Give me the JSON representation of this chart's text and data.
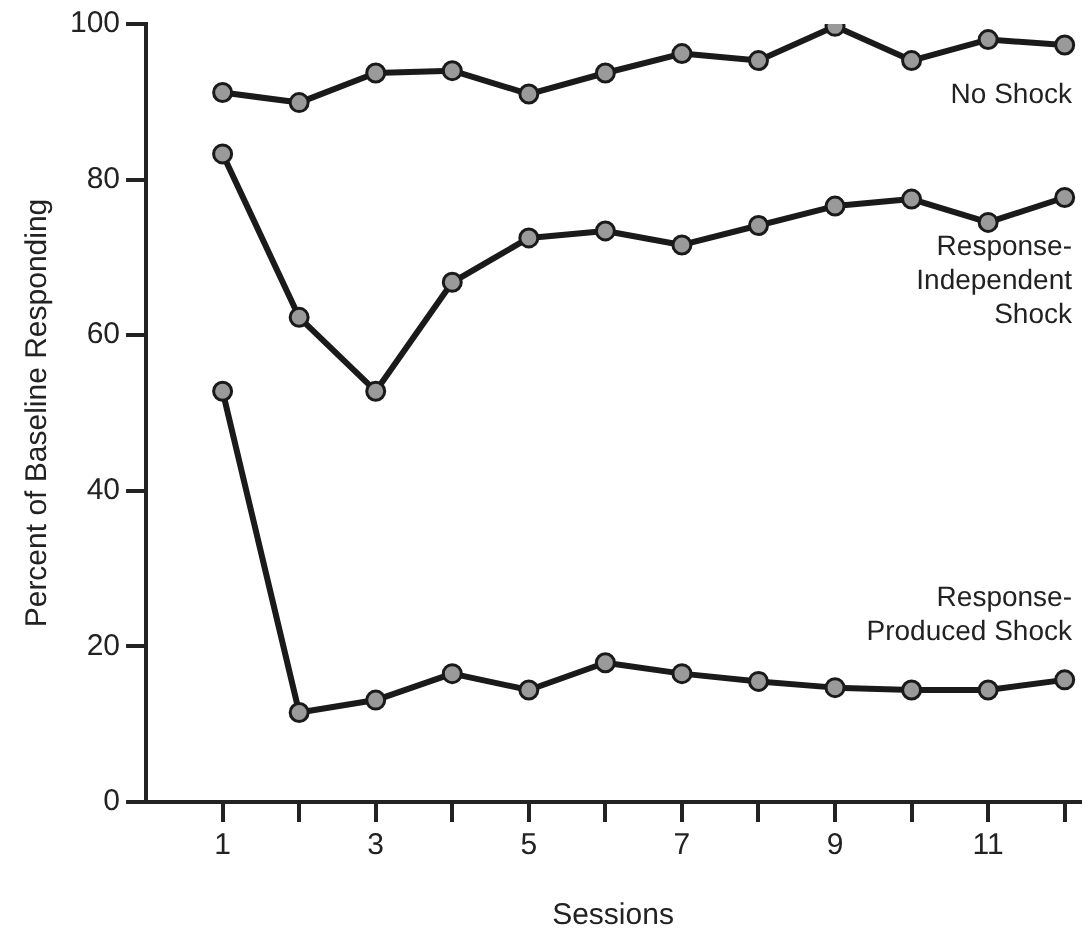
{
  "chart_data": {
    "type": "line",
    "xlabel": "Sessions",
    "ylabel": "Percent of Baseline Responding",
    "x": [
      1,
      2,
      3,
      4,
      5,
      6,
      7,
      8,
      9,
      10,
      11,
      12
    ],
    "series": [
      {
        "name": "No Shock",
        "color": "#1a1a1a",
        "values": [
          91.2,
          89.9,
          93.7,
          94,
          91,
          93.7,
          96.2,
          95.3,
          99.7,
          95.3,
          98,
          97.3
        ]
      },
      {
        "name": "Response-Independent Shock",
        "color": "#1a1a1a",
        "values": [
          83.3,
          62.3,
          52.8,
          66.8,
          72.5,
          73.4,
          71.6,
          74.1,
          76.6,
          77.5,
          74.5,
          77.7
        ]
      },
      {
        "name": "Response-Produced Shock",
        "color": "#1a1a1a",
        "values": [
          52.8,
          11.5,
          13.1,
          16.5,
          14.4,
          17.9,
          16.5,
          15.5,
          14.7,
          14.4,
          14.4,
          15.7
        ]
      }
    ],
    "xlim": [
      0,
      12.2
    ],
    "xticks": [
      1,
      {
        "value": 2,
        "label": null
      },
      3,
      {
        "value": 4,
        "label": null
      },
      5,
      {
        "value": 6,
        "label": null
      },
      7,
      {
        "value": 8,
        "label": null
      },
      9,
      {
        "value": 10,
        "label": null
      },
      11,
      {
        "value": 12,
        "label": null
      }
    ],
    "ylim": [
      0,
      100
    ],
    "yticks": [
      0,
      20,
      40,
      60,
      80,
      100
    ],
    "grid": false,
    "legend": false,
    "marker": "circle",
    "line_style": "solid"
  }
}
